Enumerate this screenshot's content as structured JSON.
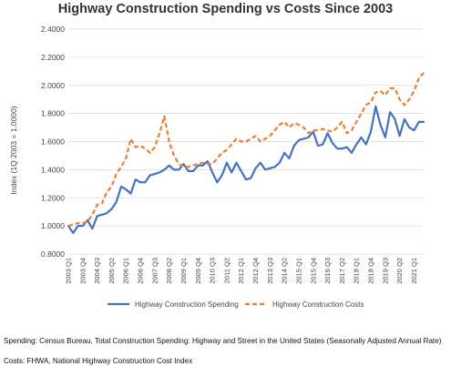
{
  "chart_data": {
    "type": "line",
    "title": "Highway Construction Spending vs Costs Since 2003",
    "ylabel": "Index (1Q 2003 = 1.0000)",
    "xlabel": "",
    "ylim": [
      0.8,
      2.4
    ],
    "yticks": [
      "0.8000",
      "1.0000",
      "1.2000",
      "1.4000",
      "1.6000",
      "1.8000",
      "2.0000",
      "2.2000",
      "2.4000"
    ],
    "grid": true,
    "legend": "bottom",
    "x": [
      "2003 Q1",
      "2003 Q2",
      "2003 Q3",
      "2003 Q4",
      "2004 Q1",
      "2004 Q2",
      "2004 Q3",
      "2004 Q4",
      "2005 Q1",
      "2005 Q2",
      "2005 Q3",
      "2005 Q4",
      "2006 Q1",
      "2006 Q2",
      "2006 Q3",
      "2006 Q4",
      "2007 Q1",
      "2007 Q2",
      "2007 Q3",
      "2007 Q4",
      "2008 Q1",
      "2008 Q2",
      "2008 Q3",
      "2008 Q4",
      "2009 Q1",
      "2009 Q2",
      "2009 Q3",
      "2009 Q4",
      "2010 Q1",
      "2010 Q2",
      "2010 Q3",
      "2010 Q4",
      "2011 Q1",
      "2011 Q2",
      "2011 Q3",
      "2011 Q4",
      "2012 Q1",
      "2012 Q2",
      "2012 Q3",
      "2012 Q4",
      "2013 Q1",
      "2013 Q2",
      "2013 Q3",
      "2013 Q4",
      "2014 Q1",
      "2014 Q2",
      "2014 Q3",
      "2014 Q4",
      "2015 Q1",
      "2015 Q2",
      "2015 Q3",
      "2015 Q4",
      "2016 Q1",
      "2016 Q2",
      "2016 Q3",
      "2016 Q4",
      "2017 Q1",
      "2017 Q2",
      "2017 Q3",
      "2017 Q4",
      "2018 Q1",
      "2018 Q2",
      "2018 Q3",
      "2018 Q4",
      "2019 Q1",
      "2019 Q2",
      "2019 Q3",
      "2019 Q4",
      "2020 Q1",
      "2020 Q2",
      "2020 Q3",
      "2020 Q4",
      "2021 Q1",
      "2021 Q2",
      "2021 Q3"
    ],
    "xticks": [
      "2003 Q1",
      "2003 Q4",
      "2004 Q3",
      "2005 Q2",
      "2006 Q1",
      "2006 Q4",
      "2007 Q3",
      "2008 Q2",
      "2009 Q1",
      "2009 Q4",
      "2010 Q3",
      "2011 Q2",
      "2012 Q1",
      "2012 Q4",
      "2013 Q3",
      "2014 Q2",
      "2015 Q1",
      "2015 Q4",
      "2016 Q3",
      "2017 Q2",
      "2018 Q1",
      "2018 Q4",
      "2019 Q3",
      "2020 Q2",
      "2021 Q1"
    ],
    "series": [
      {
        "name": "Highway Construction Spending",
        "color": "#4472C4",
        "dash": "solid",
        "values": [
          1.0,
          0.95,
          1.0,
          1.0,
          1.04,
          0.98,
          1.07,
          1.08,
          1.09,
          1.12,
          1.17,
          1.28,
          1.26,
          1.23,
          1.33,
          1.31,
          1.31,
          1.36,
          1.37,
          1.38,
          1.4,
          1.43,
          1.4,
          1.4,
          1.44,
          1.39,
          1.39,
          1.43,
          1.43,
          1.46,
          1.38,
          1.31,
          1.36,
          1.45,
          1.38,
          1.45,
          1.39,
          1.33,
          1.34,
          1.41,
          1.45,
          1.4,
          1.41,
          1.42,
          1.45,
          1.52,
          1.48,
          1.57,
          1.61,
          1.62,
          1.63,
          1.67,
          1.57,
          1.58,
          1.66,
          1.59,
          1.55,
          1.55,
          1.56,
          1.52,
          1.58,
          1.63,
          1.58,
          1.67,
          1.85,
          1.72,
          1.63,
          1.81,
          1.76,
          1.64,
          1.76,
          1.7,
          1.68,
          1.74,
          1.74
        ]
      },
      {
        "name": "Highway Construction Costs",
        "color": "#ED7D31",
        "dash": "dashed",
        "values": [
          1.0,
          1.01,
          1.02,
          1.02,
          1.03,
          1.08,
          1.15,
          1.16,
          1.24,
          1.28,
          1.37,
          1.42,
          1.48,
          1.62,
          1.56,
          1.57,
          1.55,
          1.52,
          1.56,
          1.66,
          1.78,
          1.6,
          1.5,
          1.44,
          1.42,
          1.42,
          1.43,
          1.44,
          1.45,
          1.44,
          1.44,
          1.48,
          1.52,
          1.54,
          1.58,
          1.62,
          1.6,
          1.6,
          1.62,
          1.64,
          1.6,
          1.62,
          1.64,
          1.68,
          1.72,
          1.74,
          1.7,
          1.73,
          1.72,
          1.7,
          1.66,
          1.68,
          1.68,
          1.69,
          1.68,
          1.67,
          1.7,
          1.74,
          1.66,
          1.68,
          1.74,
          1.8,
          1.86,
          1.88,
          1.95,
          1.96,
          1.93,
          1.98,
          1.98,
          1.9,
          1.86,
          1.9,
          1.96,
          2.05,
          2.09
        ]
      }
    ]
  },
  "notes": {
    "spending": "Spending: Census Bureau, Total Construction Spending: Highway and Street in the United States (Seasonally Adjusted Annual Rate)",
    "costs": "Costs: FHWA, National Highway Construction Cost Index"
  }
}
